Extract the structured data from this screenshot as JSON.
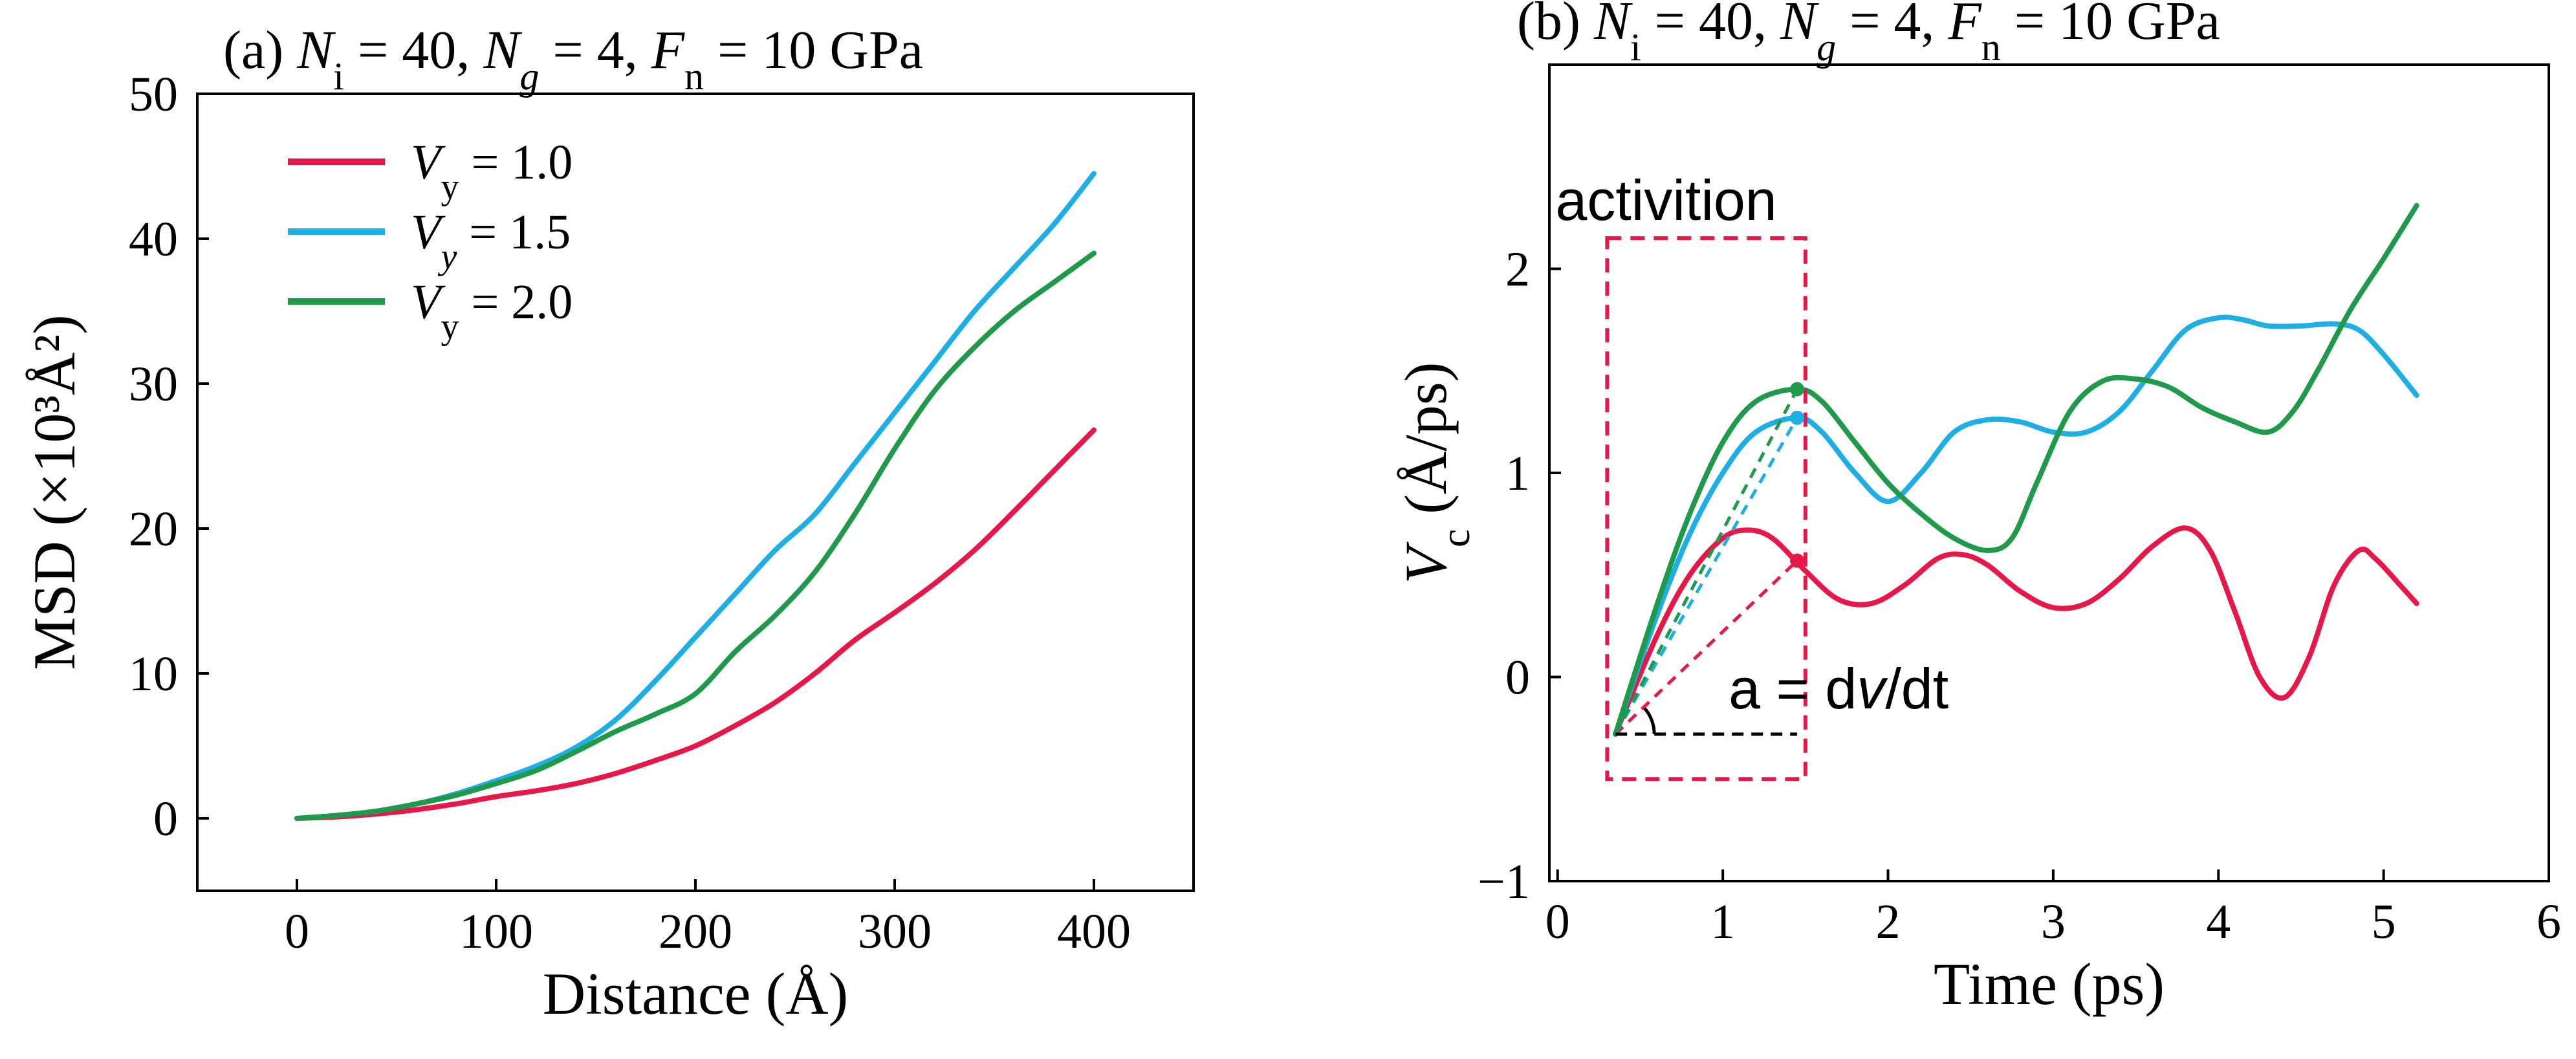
{
  "chart_data": [
    {
      "id": "a",
      "type": "line",
      "title": {
        "panel": "(a)",
        "parts": [
          {
            "t": "N",
            "i": true
          },
          {
            "t": "i",
            "sub": true
          },
          {
            "t": " = 40, "
          },
          {
            "t": "N",
            "i": true
          },
          {
            "t": "g",
            "sub": true,
            "i": true
          },
          {
            "t": " = 4, "
          },
          {
            "t": "F",
            "i": true
          },
          {
            "t": "n",
            "sub": true
          },
          {
            "t": " = 10 GPa"
          }
        ]
      },
      "xlabel": "Distance (Å)",
      "ylabel": "MSD (×10³Å²)",
      "xlim": [
        -50,
        450
      ],
      "ylim": [
        -5,
        50
      ],
      "xticks": [
        0,
        100,
        200,
        300,
        400
      ],
      "yticks": [
        0,
        10,
        20,
        30,
        40,
        50
      ],
      "legend_position": "top-left",
      "series": [
        {
          "name": "Vy = 1.0",
          "label_parts": [
            {
              "t": "V",
              "i": true
            },
            {
              "t": "y",
              "sub": true
            },
            {
              "t": " = 1.0"
            }
          ],
          "color": "#e8174a",
          "x": [
            0,
            20,
            40,
            60,
            80,
            100,
            120,
            140,
            160,
            180,
            200,
            220,
            240,
            260,
            280,
            300,
            320,
            340,
            360,
            380,
            400
          ],
          "y": [
            0,
            0.1,
            0.3,
            0.6,
            1.0,
            1.5,
            1.9,
            2.4,
            3.1,
            4.0,
            5.0,
            6.4,
            8.0,
            10.0,
            12.3,
            14.2,
            16.2,
            18.5,
            21.2,
            24.0,
            26.8
          ]
        },
        {
          "name": "Vy = 1.5",
          "label_parts": [
            {
              "t": "V",
              "i": true
            },
            {
              "t": "y",
              "sub": true,
              "i": true
            },
            {
              "t": " = 1.5"
            }
          ],
          "color": "#1eaee6",
          "x": [
            0,
            20,
            40,
            60,
            80,
            100,
            120,
            140,
            160,
            180,
            200,
            220,
            240,
            260,
            280,
            300,
            320,
            340,
            360,
            380,
            400
          ],
          "y": [
            0,
            0.2,
            0.5,
            1.0,
            1.7,
            2.6,
            3.6,
            4.9,
            6.8,
            9.5,
            12.5,
            15.5,
            18.5,
            21.0,
            24.5,
            28.0,
            31.5,
            35.0,
            38.0,
            41.0,
            44.5
          ]
        },
        {
          "name": "Vy = 2.0",
          "label_parts": [
            {
              "t": "V",
              "i": true
            },
            {
              "t": "y",
              "sub": true
            },
            {
              "t": " = 2.0"
            }
          ],
          "color": "#1e9a4a",
          "x": [
            0,
            20,
            40,
            60,
            80,
            100,
            120,
            140,
            160,
            180,
            200,
            220,
            240,
            260,
            280,
            300,
            320,
            340,
            360,
            380,
            400
          ],
          "y": [
            0,
            0.2,
            0.5,
            1.0,
            1.6,
            2.4,
            3.3,
            4.6,
            6.0,
            7.2,
            8.6,
            11.5,
            14.0,
            17.0,
            21.0,
            25.5,
            29.5,
            32.5,
            35.0,
            37.0,
            39.0
          ]
        }
      ]
    },
    {
      "id": "b",
      "type": "line",
      "title": {
        "panel": "(b)",
        "parts": [
          {
            "t": "N",
            "i": true
          },
          {
            "t": "i",
            "sub": true
          },
          {
            "t": " = 40, "
          },
          {
            "t": "N",
            "i": true
          },
          {
            "t": "g",
            "sub": true,
            "i": true
          },
          {
            "t": " = 4, "
          },
          {
            "t": "F",
            "i": true
          },
          {
            "t": "n",
            "sub": true
          },
          {
            "t": " = 10 GPa"
          }
        ]
      },
      "xlabel": "Time (ps)",
      "ylabel_parts": [
        {
          "t": "V",
          "i": true
        },
        {
          "t": "c",
          "sub": true
        },
        {
          "t": " (Å/ps)"
        }
      ],
      "xlim": [
        -0.05,
        6
      ],
      "ylim": [
        -1,
        3
      ],
      "xticks": [
        0,
        1,
        2,
        3,
        4,
        5,
        6
      ],
      "yticks": [
        -1,
        0,
        1,
        2
      ],
      "annotations": {
        "activation_label": "activition",
        "activation_box": {
          "x0": 0.3,
          "x1": 1.5,
          "y0": -0.5,
          "y1": 2.15
        },
        "slope_parts": [
          {
            "t": "a = d"
          },
          {
            "t": "v",
            "i": true
          },
          {
            "t": "/dt"
          }
        ],
        "slope_origin": [
          0.35,
          -0.28
        ],
        "baseline_end_x": 1.45
      },
      "series": [
        {
          "name": "red",
          "color": "#e8174a",
          "peak": [
            1.45,
            0.57
          ],
          "x": [
            0.35,
            0.6,
            0.8,
            1.0,
            1.15,
            1.3,
            1.5,
            1.7,
            1.9,
            2.1,
            2.3,
            2.45,
            2.6,
            2.8,
            3.0,
            3.2,
            3.4,
            3.6,
            3.8,
            3.95,
            4.1,
            4.25,
            4.4,
            4.55,
            4.7,
            4.85,
            4.95,
            5.1,
            5.2
          ],
          "y": [
            -0.28,
            0.2,
            0.5,
            0.68,
            0.72,
            0.68,
            0.52,
            0.38,
            0.36,
            0.45,
            0.58,
            0.6,
            0.55,
            0.42,
            0.34,
            0.36,
            0.48,
            0.64,
            0.73,
            0.62,
            0.32,
            0.0,
            -0.1,
            0.1,
            0.45,
            0.62,
            0.58,
            0.45,
            0.36
          ]
        },
        {
          "name": "blue",
          "color": "#1eaee6",
          "peak": [
            1.45,
            1.27
          ],
          "x": [
            0.35,
            0.6,
            0.8,
            1.0,
            1.2,
            1.45,
            1.6,
            1.8,
            2.0,
            2.2,
            2.4,
            2.6,
            2.8,
            3.0,
            3.2,
            3.4,
            3.6,
            3.8,
            4.0,
            4.15,
            4.3,
            4.5,
            4.7,
            4.85,
            5.0,
            5.2
          ],
          "y": [
            -0.28,
            0.3,
            0.7,
            1.0,
            1.2,
            1.27,
            1.2,
            1.0,
            0.86,
            1.0,
            1.2,
            1.26,
            1.25,
            1.2,
            1.2,
            1.3,
            1.5,
            1.7,
            1.76,
            1.75,
            1.72,
            1.72,
            1.73,
            1.7,
            1.58,
            1.38
          ]
        },
        {
          "name": "green",
          "color": "#1e9a4a",
          "peak": [
            1.45,
            1.41
          ],
          "x": [
            0.35,
            0.6,
            0.8,
            1.0,
            1.2,
            1.45,
            1.6,
            1.8,
            2.0,
            2.2,
            2.4,
            2.6,
            2.75,
            2.9,
            3.1,
            3.3,
            3.5,
            3.7,
            3.9,
            4.1,
            4.3,
            4.45,
            4.6,
            4.8,
            5.0,
            5.2
          ],
          "y": [
            -0.28,
            0.35,
            0.8,
            1.15,
            1.35,
            1.41,
            1.35,
            1.15,
            0.95,
            0.8,
            0.68,
            0.62,
            0.68,
            0.95,
            1.3,
            1.45,
            1.46,
            1.42,
            1.32,
            1.25,
            1.2,
            1.3,
            1.5,
            1.8,
            2.05,
            2.31
          ]
        }
      ]
    }
  ]
}
